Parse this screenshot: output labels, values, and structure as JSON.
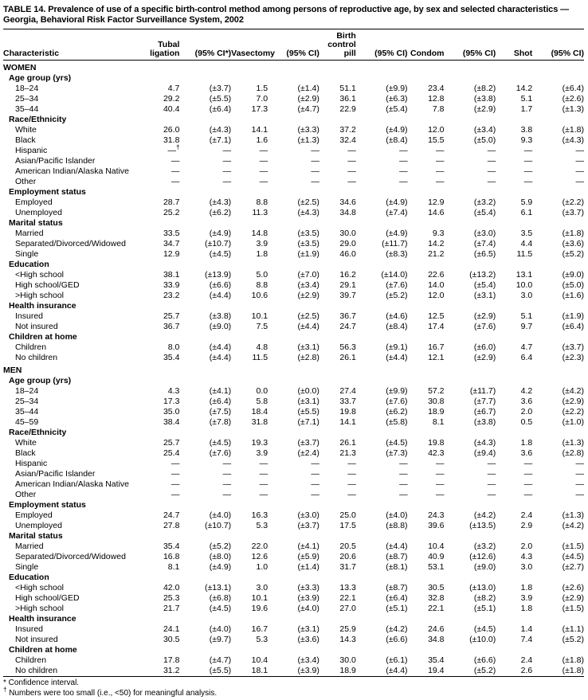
{
  "title": "TABLE 14. Prevalence of use of a specific birth-control method among persons of reproductive age, by sex and selected characteristics — Georgia, Behavioral Risk Factor Surveillance System, 2002",
  "table": {
    "column_headers": [
      "Characteristic",
      "Tubal\nligation",
      "(95% CI*)",
      "Vasectomy",
      "(95% CI)",
      "Birth\ncontrol\npill",
      "(95% CI)",
      "Condom",
      "(95% CI)",
      "Shot",
      "(95% CI)"
    ],
    "sections": [
      {
        "sex": "WOMEN",
        "groups": [
          {
            "label": "Age group (yrs)",
            "rows": [
              {
                "label": "18–24",
                "values": [
                  "4.7",
                  "(±3.7)",
                  "1.5",
                  "(±1.4)",
                  "51.1",
                  "(±9.9)",
                  "23.4",
                  "(±8.2)",
                  "14.2",
                  "(±6.4)"
                ]
              },
              {
                "label": "25–34",
                "values": [
                  "29.2",
                  "(±5.5)",
                  "7.0",
                  "(±2.9)",
                  "36.1",
                  "(±6.3)",
                  "12.8",
                  "(±3.8)",
                  "5.1",
                  "(±2.6)"
                ]
              },
              {
                "label": "35–44",
                "values": [
                  "40.4",
                  "(±6.4)",
                  "17.3",
                  "(±4.7)",
                  "22.9",
                  "(±5.4)",
                  "7.8",
                  "(±2.9)",
                  "1.7",
                  "(±1.3)"
                ]
              }
            ]
          },
          {
            "label": "Race/Ethnicity",
            "rows": [
              {
                "label": "White",
                "values": [
                  "26.0",
                  "(±4.3)",
                  "14.1",
                  "(±3.3)",
                  "37.2",
                  "(±4.9)",
                  "12.0",
                  "(±3.4)",
                  "3.8",
                  "(±1.8)"
                ]
              },
              {
                "label": "Black",
                "values": [
                  "31.8",
                  "(±7.1)",
                  "1.6",
                  "(±1.3)",
                  "32.4",
                  "(±8.4)",
                  "15.5",
                  "(±5.0)",
                  "9.3",
                  "(±4.3)"
                ]
              },
              {
                "label": "Hispanic",
                "values": [
                  "—†",
                  "—",
                  "—",
                  "—",
                  "—",
                  "—",
                  "—",
                  "—",
                  "—",
                  "—"
                ]
              },
              {
                "label": "Asian/Pacific Islander",
                "values": [
                  "—",
                  "—",
                  "—",
                  "—",
                  "—",
                  "—",
                  "—",
                  "—",
                  "—",
                  "—"
                ]
              },
              {
                "label": "American Indian/Alaska Native",
                "values": [
                  "—",
                  "—",
                  "—",
                  "—",
                  "—",
                  "—",
                  "—",
                  "—",
                  "—",
                  "—"
                ]
              },
              {
                "label": "Other",
                "values": [
                  "—",
                  "—",
                  "—",
                  "—",
                  "—",
                  "—",
                  "—",
                  "—",
                  "—",
                  "—"
                ]
              }
            ]
          },
          {
            "label": "Employment status",
            "rows": [
              {
                "label": "Employed",
                "values": [
                  "28.7",
                  "(±4.3)",
                  "8.8",
                  "(±2.5)",
                  "34.6",
                  "(±4.9)",
                  "12.9",
                  "(±3.2)",
                  "5.9",
                  "(±2.2)"
                ]
              },
              {
                "label": "Unemployed",
                "values": [
                  "25.2",
                  "(±6.2)",
                  "11.3",
                  "(±4.3)",
                  "34.8",
                  "(±7.4)",
                  "14.6",
                  "(±5.4)",
                  "6.1",
                  "(±3.7)"
                ]
              }
            ]
          },
          {
            "label": "Marital status",
            "rows": [
              {
                "label": "Married",
                "values": [
                  "33.5",
                  "(±4.9)",
                  "14.8",
                  "(±3.5)",
                  "30.0",
                  "(±4.9)",
                  "9.3",
                  "(±3.0)",
                  "3.5",
                  "(±1.8)"
                ]
              },
              {
                "label": "Separated/Divorced/Widowed",
                "values": [
                  "34.7",
                  "(±10.7)",
                  "3.9",
                  "(±3.5)",
                  "29.0",
                  "(±11.7)",
                  "14.2",
                  "(±7.4)",
                  "4.4",
                  "(±3.6)"
                ]
              },
              {
                "label": "Single",
                "values": [
                  "12.9",
                  "(±4.5)",
                  "1.8",
                  "(±1.9)",
                  "46.0",
                  "(±8.3)",
                  "21.2",
                  "(±6.5)",
                  "11.5",
                  "(±5.2)"
                ]
              }
            ]
          },
          {
            "label": "Education",
            "rows": [
              {
                "label": "<High school",
                "values": [
                  "38.1",
                  "(±13.9)",
                  "5.0",
                  "(±7.0)",
                  "16.2",
                  "(±14.0)",
                  "22.6",
                  "(±13.2)",
                  "13.1",
                  "(±9.0)"
                ]
              },
              {
                "label": "High school/GED",
                "values": [
                  "33.9",
                  "(±6.6)",
                  "8.8",
                  "(±3.4)",
                  "29.1",
                  "(±7.6)",
                  "14.0",
                  "(±5.4)",
                  "10.0",
                  "(±5.0)"
                ]
              },
              {
                "label": ">High school",
                "values": [
                  "23.2",
                  "(±4.4)",
                  "10.6",
                  "(±2.9)",
                  "39.7",
                  "(±5.2)",
                  "12.0",
                  "(±3.1)",
                  "3.0",
                  "(±1.6)"
                ]
              }
            ]
          },
          {
            "label": "Health insurance",
            "rows": [
              {
                "label": "Insured",
                "values": [
                  "25.7",
                  "(±3.8)",
                  "10.1",
                  "(±2.5)",
                  "36.7",
                  "(±4.6)",
                  "12.5",
                  "(±2.9)",
                  "5.1",
                  "(±1.9)"
                ]
              },
              {
                "label": "Not insured",
                "values": [
                  "36.7",
                  "(±9.0)",
                  "7.5",
                  "(±4.4)",
                  "24.7",
                  "(±8.4)",
                  "17.4",
                  "(±7.6)",
                  "9.7",
                  "(±6.4)"
                ]
              }
            ]
          },
          {
            "label": "Children at home",
            "rows": [
              {
                "label": "Children",
                "values": [
                  "8.0",
                  "(±4.4)",
                  "4.8",
                  "(±3.1)",
                  "56.3",
                  "(±9.1)",
                  "16.7",
                  "(±6.0)",
                  "4.7",
                  "(±3.7)"
                ]
              },
              {
                "label": "No children",
                "values": [
                  "35.4",
                  "(±4.4)",
                  "11.5",
                  "(±2.8)",
                  "26.1",
                  "(±4.4)",
                  "12.1",
                  "(±2.9)",
                  "6.4",
                  "(±2.3)"
                ]
              }
            ]
          }
        ]
      },
      {
        "sex": "MEN",
        "groups": [
          {
            "label": "Age group (yrs)",
            "rows": [
              {
                "label": "18–24",
                "values": [
                  "4.3",
                  "(±4.1)",
                  "0.0",
                  "(±0.0)",
                  "27.4",
                  "(±9.9)",
                  "57.2",
                  "(±11.7)",
                  "4.2",
                  "(±4.2)"
                ]
              },
              {
                "label": "25–34",
                "values": [
                  "17.3",
                  "(±6.4)",
                  "5.8",
                  "(±3.1)",
                  "33.7",
                  "(±7.6)",
                  "30.8",
                  "(±7.7)",
                  "3.6",
                  "(±2.9)"
                ]
              },
              {
                "label": "35–44",
                "values": [
                  "35.0",
                  "(±7.5)",
                  "18.4",
                  "(±5.5)",
                  "19.8",
                  "(±6.2)",
                  "18.9",
                  "(±6.7)",
                  "2.0",
                  "(±2.2)"
                ]
              },
              {
                "label": "45–59",
                "values": [
                  "38.4",
                  "(±7.8)",
                  "31.8",
                  "(±7.1)",
                  "14.1",
                  "(±5.8)",
                  "8.1",
                  "(±3.8)",
                  "0.5",
                  "(±1.0)"
                ]
              }
            ]
          },
          {
            "label": "Race/Ethnicity",
            "rows": [
              {
                "label": "White",
                "values": [
                  "25.7",
                  "(±4.5)",
                  "19.3",
                  "(±3.7)",
                  "26.1",
                  "(±4.5)",
                  "19.8",
                  "(±4.3)",
                  "1.8",
                  "(±1.3)"
                ]
              },
              {
                "label": "Black",
                "values": [
                  "25.4",
                  "(±7.6)",
                  "3.9",
                  "(±2.4)",
                  "21.3",
                  "(±7.3)",
                  "42.3",
                  "(±9.4)",
                  "3.6",
                  "(±2.8)"
                ]
              },
              {
                "label": "Hispanic",
                "values": [
                  "—",
                  "—",
                  "—",
                  "—",
                  "—",
                  "—",
                  "—",
                  "—",
                  "—",
                  "—"
                ]
              },
              {
                "label": "Asian/Pacific Islander",
                "values": [
                  "—",
                  "—",
                  "—",
                  "—",
                  "—",
                  "—",
                  "—",
                  "—",
                  "—",
                  "—"
                ]
              },
              {
                "label": "American Indian/Alaska Native",
                "values": [
                  "—",
                  "—",
                  "—",
                  "—",
                  "—",
                  "—",
                  "—",
                  "—",
                  "—",
                  "—"
                ]
              },
              {
                "label": "Other",
                "values": [
                  "—",
                  "—",
                  "—",
                  "—",
                  "—",
                  "—",
                  "—",
                  "—",
                  "—",
                  "—"
                ]
              }
            ]
          },
          {
            "label": "Employment status",
            "rows": [
              {
                "label": "Employed",
                "values": [
                  "24.7",
                  "(±4.0)",
                  "16.3",
                  "(±3.0)",
                  "25.0",
                  "(±4.0)",
                  "24.3",
                  "(±4.2)",
                  "2.4",
                  "(±1.3)"
                ]
              },
              {
                "label": "Unemployed",
                "values": [
                  "27.8",
                  "(±10.7)",
                  "5.3",
                  "(±3.7)",
                  "17.5",
                  "(±8.8)",
                  "39.6",
                  "(±13.5)",
                  "2.9",
                  "(±4.2)"
                ]
              }
            ]
          },
          {
            "label": "Marital status",
            "rows": [
              {
                "label": "Married",
                "values": [
                  "35.4",
                  "(±5.2)",
                  "22.0",
                  "(±4.1)",
                  "20.5",
                  "(±4.4)",
                  "10.4",
                  "(±3.2)",
                  "2.0",
                  "(±1.5)"
                ]
              },
              {
                "label": "Separated/Divorced/Widowed",
                "values": [
                  "16.8",
                  "(±8.0)",
                  "12.6",
                  "(±5.9)",
                  "20.6",
                  "(±8.7)",
                  "40.9",
                  "(±12.6)",
                  "4.3",
                  "(±4.5)"
                ]
              },
              {
                "label": "Single",
                "values": [
                  "8.1",
                  "(±4.9)",
                  "1.0",
                  "(±1.4)",
                  "31.7",
                  "(±8.1)",
                  "53.1",
                  "(±9.0)",
                  "3.0",
                  "(±2.7)"
                ]
              }
            ]
          },
          {
            "label": "Education",
            "rows": [
              {
                "label": "<High school",
                "values": [
                  "42.0",
                  "(±13.1)",
                  "3.0",
                  "(±3.3)",
                  "13.3",
                  "(±8.7)",
                  "30.5",
                  "(±13.0)",
                  "1.8",
                  "(±2.6)"
                ]
              },
              {
                "label": "High school/GED",
                "values": [
                  "25.3",
                  "(±6.8)",
                  "10.1",
                  "(±3.9)",
                  "22.1",
                  "(±6.4)",
                  "32.8",
                  "(±8.2)",
                  "3.9",
                  "(±2.9)"
                ]
              },
              {
                "label": ">High school",
                "values": [
                  "21.7",
                  "(±4.5)",
                  "19.6",
                  "(±4.0)",
                  "27.0",
                  "(±5.1)",
                  "22.1",
                  "(±5.1)",
                  "1.8",
                  "(±1.5)"
                ]
              }
            ]
          },
          {
            "label": "Health insurance",
            "rows": [
              {
                "label": "Insured",
                "values": [
                  "24.1",
                  "(±4.0)",
                  "16.7",
                  "(±3.1)",
                  "25.9",
                  "(±4.2)",
                  "24.6",
                  "(±4.5)",
                  "1.4",
                  "(±1.1)"
                ]
              },
              {
                "label": "Not insured",
                "values": [
                  "30.5",
                  "(±9.7)",
                  "5.3",
                  "(±3.6)",
                  "14.3",
                  "(±6.6)",
                  "34.8",
                  "(±10.0)",
                  "7.4",
                  "(±5.2)"
                ]
              }
            ]
          },
          {
            "label": "Children at home",
            "rows": [
              {
                "label": "Children",
                "values": [
                  "17.8",
                  "(±4.7)",
                  "10.4",
                  "(±3.4)",
                  "30.0",
                  "(±6.1)",
                  "35.4",
                  "(±6.6)",
                  "2.4",
                  "(±1.8)"
                ]
              },
              {
                "label": "No children",
                "values": [
                  "31.2",
                  "(±5.5)",
                  "18.1",
                  "(±3.9)",
                  "18.9",
                  "(±4.4)",
                  "19.4",
                  "(±5.2)",
                  "2.6",
                  "(±1.8)"
                ]
              }
            ]
          }
        ]
      }
    ]
  },
  "footnotes": [
    {
      "marker": "*",
      "text": " Confidence interval."
    },
    {
      "marker": "†",
      "text": " Numbers were too small (i.e., <50) for meaningful analysis."
    }
  ]
}
